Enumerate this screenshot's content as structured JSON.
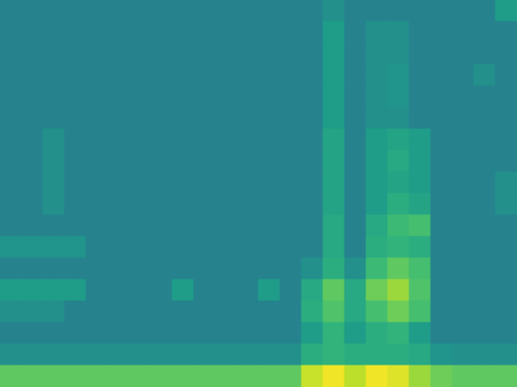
{
  "chart_data": {
    "type": "heatmap",
    "tick_labels": false,
    "cells": [
      [
        0.45,
        0.45,
        0.45,
        0.45,
        0.45,
        0.45,
        0.45,
        0.45,
        0.45,
        0.45,
        0.45,
        0.45,
        0.45,
        0.45,
        0.45,
        0.5,
        0.45,
        0.45,
        0.45,
        0.45,
        0.45,
        0.45,
        0.45,
        0.55
      ],
      [
        0.45,
        0.45,
        0.45,
        0.45,
        0.45,
        0.45,
        0.45,
        0.45,
        0.45,
        0.45,
        0.45,
        0.45,
        0.45,
        0.45,
        0.45,
        0.55,
        0.45,
        0.5,
        0.5,
        0.45,
        0.45,
        0.45,
        0.45,
        0.45
      ],
      [
        0.45,
        0.45,
        0.45,
        0.45,
        0.45,
        0.45,
        0.45,
        0.45,
        0.45,
        0.45,
        0.45,
        0.45,
        0.45,
        0.45,
        0.45,
        0.55,
        0.45,
        0.5,
        0.5,
        0.45,
        0.45,
        0.45,
        0.45,
        0.45
      ],
      [
        0.45,
        0.45,
        0.45,
        0.45,
        0.45,
        0.45,
        0.45,
        0.45,
        0.45,
        0.45,
        0.45,
        0.45,
        0.45,
        0.45,
        0.45,
        0.55,
        0.45,
        0.5,
        0.52,
        0.45,
        0.45,
        0.45,
        0.5,
        0.45
      ],
      [
        0.45,
        0.45,
        0.45,
        0.45,
        0.45,
        0.45,
        0.45,
        0.45,
        0.45,
        0.45,
        0.45,
        0.45,
        0.45,
        0.45,
        0.45,
        0.55,
        0.45,
        0.5,
        0.52,
        0.45,
        0.45,
        0.45,
        0.45,
        0.45
      ],
      [
        0.45,
        0.45,
        0.45,
        0.45,
        0.45,
        0.45,
        0.45,
        0.45,
        0.45,
        0.45,
        0.45,
        0.45,
        0.45,
        0.45,
        0.45,
        0.55,
        0.45,
        0.5,
        0.5,
        0.45,
        0.45,
        0.45,
        0.45,
        0.45
      ],
      [
        0.45,
        0.45,
        0.5,
        0.45,
        0.45,
        0.45,
        0.45,
        0.45,
        0.45,
        0.45,
        0.45,
        0.45,
        0.45,
        0.45,
        0.45,
        0.58,
        0.45,
        0.55,
        0.58,
        0.55,
        0.45,
        0.45,
        0.45,
        0.45
      ],
      [
        0.45,
        0.45,
        0.5,
        0.45,
        0.45,
        0.45,
        0.45,
        0.45,
        0.45,
        0.45,
        0.45,
        0.45,
        0.45,
        0.45,
        0.45,
        0.58,
        0.45,
        0.55,
        0.6,
        0.55,
        0.45,
        0.45,
        0.45,
        0.45
      ],
      [
        0.45,
        0.45,
        0.5,
        0.45,
        0.45,
        0.45,
        0.45,
        0.45,
        0.45,
        0.45,
        0.45,
        0.45,
        0.45,
        0.45,
        0.45,
        0.58,
        0.45,
        0.55,
        0.58,
        0.55,
        0.45,
        0.45,
        0.45,
        0.5
      ],
      [
        0.45,
        0.45,
        0.5,
        0.45,
        0.45,
        0.45,
        0.45,
        0.45,
        0.45,
        0.45,
        0.45,
        0.45,
        0.45,
        0.45,
        0.45,
        0.58,
        0.45,
        0.55,
        0.62,
        0.58,
        0.45,
        0.45,
        0.45,
        0.5
      ],
      [
        0.45,
        0.45,
        0.45,
        0.45,
        0.45,
        0.45,
        0.45,
        0.45,
        0.45,
        0.45,
        0.45,
        0.45,
        0.45,
        0.45,
        0.45,
        0.6,
        0.45,
        0.6,
        0.68,
        0.7,
        0.45,
        0.45,
        0.45,
        0.45
      ],
      [
        0.52,
        0.52,
        0.52,
        0.52,
        0.45,
        0.45,
        0.45,
        0.45,
        0.45,
        0.45,
        0.45,
        0.45,
        0.45,
        0.45,
        0.45,
        0.6,
        0.45,
        0.62,
        0.65,
        0.62,
        0.45,
        0.45,
        0.45,
        0.45
      ],
      [
        0.45,
        0.45,
        0.45,
        0.45,
        0.45,
        0.45,
        0.45,
        0.45,
        0.45,
        0.45,
        0.45,
        0.45,
        0.45,
        0.45,
        0.5,
        0.62,
        0.5,
        0.68,
        0.75,
        0.7,
        0.45,
        0.45,
        0.45,
        0.45
      ],
      [
        0.55,
        0.55,
        0.55,
        0.55,
        0.45,
        0.45,
        0.45,
        0.45,
        0.55,
        0.45,
        0.45,
        0.45,
        0.55,
        0.45,
        0.6,
        0.75,
        0.6,
        0.78,
        0.85,
        0.72,
        0.45,
        0.45,
        0.45,
        0.45
      ],
      [
        0.5,
        0.5,
        0.5,
        0.45,
        0.45,
        0.45,
        0.45,
        0.45,
        0.45,
        0.45,
        0.45,
        0.45,
        0.45,
        0.45,
        0.62,
        0.72,
        0.6,
        0.7,
        0.78,
        0.7,
        0.45,
        0.45,
        0.45,
        0.45
      ],
      [
        0.45,
        0.45,
        0.45,
        0.45,
        0.45,
        0.45,
        0.45,
        0.45,
        0.45,
        0.45,
        0.45,
        0.45,
        0.45,
        0.45,
        0.55,
        0.65,
        0.55,
        0.62,
        0.65,
        0.55,
        0.45,
        0.45,
        0.45,
        0.45
      ],
      [
        0.5,
        0.5,
        0.5,
        0.5,
        0.5,
        0.5,
        0.5,
        0.5,
        0.5,
        0.5,
        0.5,
        0.5,
        0.5,
        0.5,
        0.62,
        0.65,
        0.62,
        0.62,
        0.62,
        0.6,
        0.52,
        0.5,
        0.5,
        0.5
      ],
      [
        0.75,
        0.75,
        0.75,
        0.75,
        0.75,
        0.75,
        0.75,
        0.75,
        0.75,
        0.75,
        0.75,
        0.75,
        0.75,
        0.75,
        0.92,
        0.98,
        0.9,
        0.98,
        0.95,
        0.85,
        0.78,
        0.75,
        0.75,
        0.75
      ]
    ]
  }
}
